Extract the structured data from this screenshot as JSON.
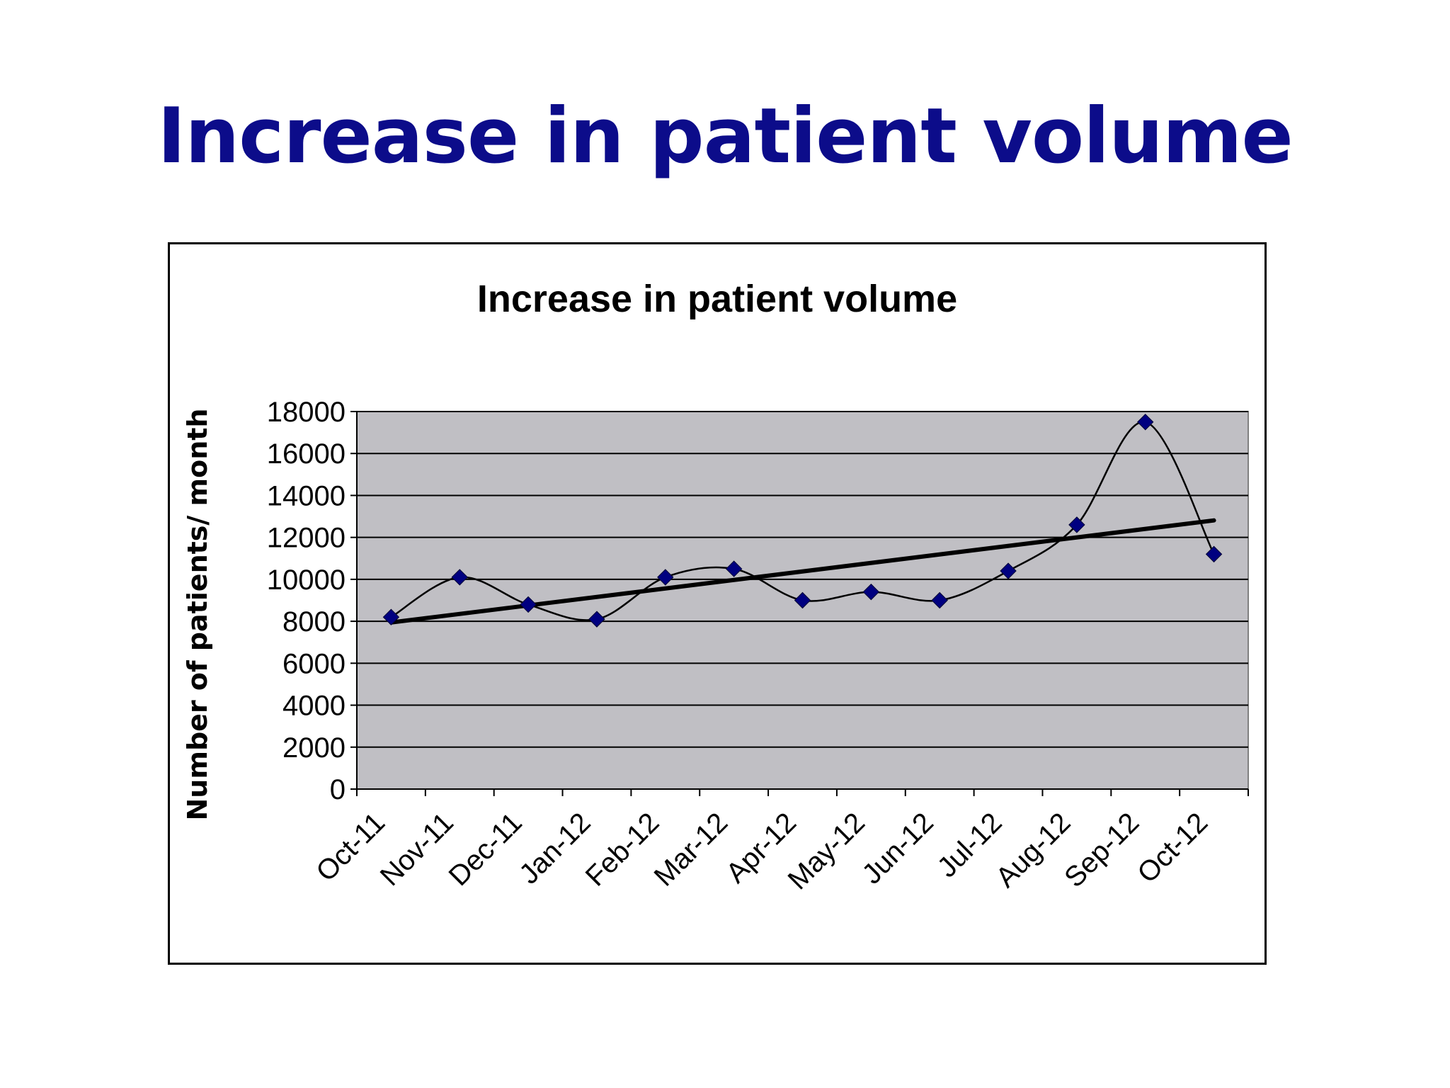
{
  "slide": {
    "title": "Increase in patient volume"
  },
  "chart_data": {
    "type": "line",
    "title": "Increase in patient volume",
    "ylabel": "Number of patients/ month",
    "xlabel": "",
    "ylim": [
      0,
      18000
    ],
    "y_ticks": [
      0,
      2000,
      4000,
      6000,
      8000,
      10000,
      12000,
      14000,
      16000,
      18000
    ],
    "categories": [
      "Oct-11",
      "Nov-11",
      "Dec-11",
      "Jan-12",
      "Feb-12",
      "Mar-12",
      "Apr-12",
      "May-12",
      "Jun-12",
      "Jul-12",
      "Aug-12",
      "Sep-12",
      "Oct-12"
    ],
    "series": [
      {
        "values": [
          8200,
          10100,
          8800,
          8100,
          10100,
          10500,
          9000,
          9400,
          9000,
          10400,
          12600,
          17500,
          11200
        ],
        "color": "#000080",
        "marker": "diamond",
        "smooth": true
      }
    ],
    "trendline": {
      "type": "linear",
      "color": "#000000"
    },
    "grid": true,
    "legend": false,
    "plot_background": "#c0bfc4"
  }
}
